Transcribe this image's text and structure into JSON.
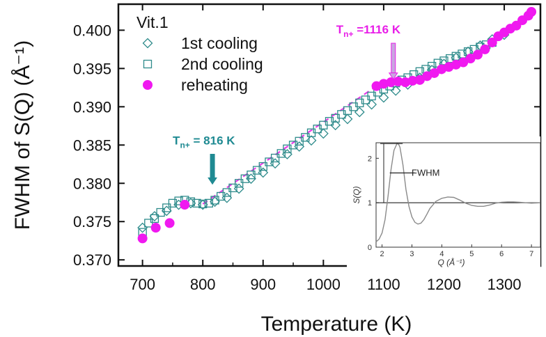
{
  "colors": {
    "reheating": "#f019f0",
    "cooling": "#2e8b8b",
    "dashed_line": "#e83ce8",
    "annotation_teal": "#1f8a92",
    "annotation_magenta": "#e81ee8",
    "inset_curve": "#8a8a8a"
  },
  "chart_data": [
    {
      "type": "scatter",
      "title": "",
      "xlabel": "Temperature (K)",
      "ylabel": "FWHM of S(Q) (Å⁻¹)",
      "xlim": [
        660,
        1360
      ],
      "ylim": [
        0.3692,
        0.4034
      ],
      "xticks": [
        700,
        800,
        900,
        1000,
        1100,
        1200,
        1300
      ],
      "xtick_labels": [
        "700",
        "800",
        "900",
        "1000",
        "1100",
        "1200",
        "1300"
      ],
      "yticks": [
        0.37,
        0.375,
        0.38,
        0.385,
        0.39,
        0.395,
        0.4
      ],
      "ytick_labels": [
        "0.370",
        "0.375",
        "0.380",
        "0.385",
        "0.390",
        "0.395",
        "0.400"
      ],
      "legend": {
        "title": "Vit.1",
        "position": "top-left",
        "entries": [
          "1st cooling",
          "2nd cooling",
          "reheating"
        ]
      },
      "series": [
        {
          "name": "1st cooling",
          "marker": "diamond-open",
          "x": [
            700,
            720,
            740,
            760,
            780,
            800,
            820,
            840,
            860,
            880,
            900,
            920,
            940,
            960,
            980,
            1000,
            1020,
            1040,
            1060,
            1080,
            1100,
            1120,
            1140,
            1160,
            1180,
            1200,
            1220,
            1240,
            1260,
            1280,
            1300
          ],
          "y": [
            0.3742,
            0.3757,
            0.3764,
            0.3772,
            0.3774,
            0.3772,
            0.3776,
            0.3781,
            0.3793,
            0.3806,
            0.3814,
            0.3826,
            0.3838,
            0.3848,
            0.3856,
            0.3865,
            0.3876,
            0.3884,
            0.3893,
            0.3903,
            0.3912,
            0.3921,
            0.3929,
            0.3938,
            0.3948,
            0.3956,
            0.3964,
            0.3972,
            0.398,
            0.3988,
            0.3994
          ]
        },
        {
          "name": "2nd cooling",
          "marker": "square-open",
          "x": [
            700,
            710,
            720,
            730,
            740,
            750,
            760,
            770,
            780,
            790,
            800,
            810,
            820,
            830,
            840,
            850,
            860,
            870,
            880,
            890,
            900,
            910,
            920,
            930,
            940,
            950,
            960,
            970,
            980,
            990,
            1000,
            1010,
            1020,
            1030,
            1040,
            1050,
            1060,
            1070,
            1080,
            1090,
            1100,
            1110,
            1120,
            1130,
            1140,
            1150,
            1160,
            1170,
            1180,
            1190,
            1200,
            1210,
            1220,
            1230,
            1240,
            1250,
            1260,
            1270,
            1280
          ],
          "y": [
            0.3736,
            0.3748,
            0.3754,
            0.3762,
            0.3768,
            0.3774,
            0.3777,
            0.3778,
            0.3776,
            0.3774,
            0.3773,
            0.3774,
            0.3778,
            0.3783,
            0.3788,
            0.3794,
            0.38,
            0.3806,
            0.3811,
            0.3817,
            0.3822,
            0.3828,
            0.3833,
            0.3839,
            0.3845,
            0.385,
            0.3855,
            0.386,
            0.3866,
            0.3871,
            0.3876,
            0.3881,
            0.3885,
            0.389,
            0.3895,
            0.39,
            0.3905,
            0.3909,
            0.3914,
            0.3919,
            0.3923,
            0.3927,
            0.3931,
            0.3935,
            0.3938,
            0.3942,
            0.3946,
            0.3949,
            0.3953,
            0.3957,
            0.396,
            0.3963,
            0.3966,
            0.3969,
            0.3972,
            0.3975,
            0.3978,
            0.3981,
            0.3984
          ]
        },
        {
          "name": "reheating",
          "marker": "circle-filled",
          "x": [
            700,
            722,
            745,
            770,
            1088,
            1100,
            1112,
            1124,
            1136,
            1148,
            1160,
            1172,
            1184,
            1196,
            1208,
            1220,
            1232,
            1244,
            1256,
            1268,
            1280,
            1290,
            1300,
            1310,
            1320,
            1330,
            1340,
            1345
          ],
          "y": [
            0.3728,
            0.3742,
            0.3748,
            0.3772,
            0.3927,
            0.393,
            0.3932,
            0.3933,
            0.3932,
            0.3934,
            0.3935,
            0.394,
            0.3944,
            0.3949,
            0.3952,
            0.3955,
            0.3958,
            0.3963,
            0.3968,
            0.3975,
            0.3984,
            0.3992,
            0.3997,
            0.4002,
            0.4006,
            0.4013,
            0.4019,
            0.4024
          ]
        }
      ],
      "guide_line": {
        "style": "dashed",
        "x": [
          800,
          1088
        ],
        "y": [
          0.3773,
          0.3927
        ]
      },
      "annotations": [
        {
          "id": "tn1",
          "sub_base": "T",
          "sub": "n+",
          "text": " = 816 K",
          "x": 816,
          "arrow_from_y": 0.3838,
          "arrow_to_y": 0.3799
        },
        {
          "id": "tn2",
          "sub_base": "T",
          "sub": "n+",
          "text": " =1116 K",
          "x": 1116,
          "arrow_from_y": 0.3983,
          "arrow_to_y": 0.3936
        }
      ]
    },
    {
      "type": "line",
      "title": "",
      "xlabel": "Q (Å⁻¹)",
      "ylabel": "S(Q)",
      "xlim": [
        1.8,
        7.3
      ],
      "ylim": [
        0,
        2.35
      ],
      "xticks": [
        2,
        3,
        4,
        5,
        6,
        7
      ],
      "xtick_labels": [
        "2",
        "3",
        "4",
        "5",
        "6",
        "7"
      ],
      "yticks": [
        0,
        1,
        2
      ],
      "ytick_labels": [
        "0",
        "1",
        "2"
      ],
      "reference_line_y": 1,
      "fwhm_label": "FWHM",
      "series": [
        {
          "x": [
            1.8,
            1.9,
            2.0,
            2.1,
            2.2,
            2.3,
            2.4,
            2.5,
            2.55,
            2.6,
            2.7,
            2.8,
            2.9,
            3.0,
            3.1,
            3.2,
            3.3,
            3.4,
            3.5,
            3.6,
            3.8,
            4.0,
            4.2,
            4.4,
            4.6,
            4.8,
            5.0,
            5.2,
            5.4,
            5.6,
            5.8,
            6.0,
            6.2,
            6.4,
            6.6,
            6.8,
            7.0,
            7.3
          ],
          "y": [
            0.12,
            0.18,
            0.32,
            0.62,
            1.15,
            1.75,
            2.18,
            2.33,
            2.32,
            2.25,
            1.85,
            1.3,
            0.92,
            0.68,
            0.56,
            0.52,
            0.54,
            0.62,
            0.74,
            0.87,
            1.03,
            1.1,
            1.13,
            1.12,
            1.06,
            0.99,
            0.94,
            0.92,
            0.92,
            0.95,
            0.99,
            1.01,
            1.02,
            1.02,
            1.01,
            1.0,
            0.99,
            1.0
          ]
        }
      ]
    }
  ]
}
